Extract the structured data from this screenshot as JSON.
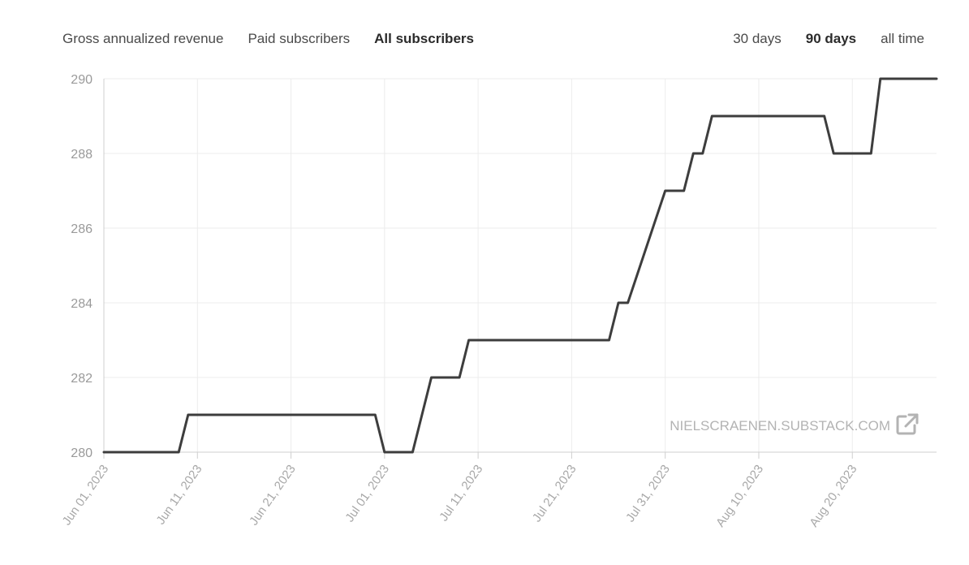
{
  "metric_tabs": [
    {
      "label": "Gross annualized revenue",
      "active": false
    },
    {
      "label": "Paid subscribers",
      "active": false
    },
    {
      "label": "All subscribers",
      "active": true
    }
  ],
  "range_tabs": [
    {
      "label": "30 days",
      "active": false
    },
    {
      "label": "90 days",
      "active": true
    },
    {
      "label": "all time",
      "active": false
    }
  ],
  "watermark": {
    "text": "NIELSCRAENEN.SUBSTACK.COM",
    "icon": "external-link-icon"
  },
  "colors": {
    "line": "#3d3d3d",
    "grid": "#ececec",
    "axis": "#cfcfcf"
  },
  "chart_data": {
    "type": "line",
    "title": "",
    "xlabel": "",
    "ylabel": "",
    "ylim": [
      280,
      290
    ],
    "yticks": [
      280,
      282,
      284,
      286,
      288,
      290
    ],
    "ytick_labels": [
      "280",
      "282",
      "284",
      "286",
      "288",
      "290"
    ],
    "xlim": [
      "2023-06-01",
      "2023-08-29"
    ],
    "xticks": [
      "2023-06-01",
      "2023-06-11",
      "2023-06-21",
      "2023-07-01",
      "2023-07-11",
      "2023-07-21",
      "2023-07-31",
      "2023-08-10",
      "2023-08-20"
    ],
    "xtick_labels": [
      "Jun 01, 2023",
      "Jun 11, 2023",
      "Jun 21, 2023",
      "Jul 01, 2023",
      "Jul 11, 2023",
      "Jul 21, 2023",
      "Jul 31, 2023",
      "Aug 10, 2023",
      "Aug 20, 2023"
    ],
    "grid": true,
    "series": [
      {
        "points": [
          [
            "2023-06-01",
            280
          ],
          [
            "2023-06-09",
            280
          ],
          [
            "2023-06-10",
            281
          ],
          [
            "2023-06-30",
            281
          ],
          [
            "2023-07-01",
            280
          ],
          [
            "2023-07-04",
            280
          ],
          [
            "2023-07-06",
            282
          ],
          [
            "2023-07-09",
            282
          ],
          [
            "2023-07-10",
            283
          ],
          [
            "2023-07-25",
            283
          ],
          [
            "2023-07-26",
            284
          ],
          [
            "2023-07-27",
            284
          ],
          [
            "2023-07-31",
            287
          ],
          [
            "2023-08-02",
            287
          ],
          [
            "2023-08-03",
            288
          ],
          [
            "2023-08-04",
            288
          ],
          [
            "2023-08-05",
            289
          ],
          [
            "2023-08-17",
            289
          ],
          [
            "2023-08-18",
            288
          ],
          [
            "2023-08-22",
            288
          ],
          [
            "2023-08-23",
            290
          ],
          [
            "2023-08-24",
            290
          ]
        ]
      }
    ]
  }
}
